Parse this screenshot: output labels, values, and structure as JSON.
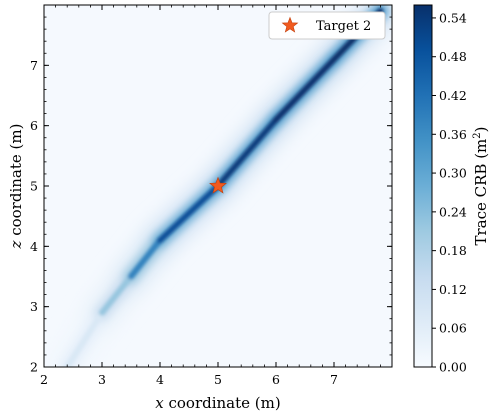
{
  "chart_data": {
    "type": "heatmap",
    "title": "",
    "xlabel": {
      "var": "x",
      "rest": " coordinate (m)"
    },
    "ylabel": {
      "var": "z",
      "rest": " coordinate (m)"
    },
    "xlim": [
      2,
      8
    ],
    "ylim": [
      2,
      8
    ],
    "xticks": [
      "2",
      "3",
      "4",
      "5",
      "6",
      "7"
    ],
    "yticks": [
      "2",
      "3",
      "4",
      "5",
      "6",
      "7"
    ],
    "grid": false,
    "colorbar": {
      "label": "Trace CRB (m",
      "label_sup": "2",
      "label_end": ")",
      "range": [
        0,
        0.56
      ],
      "ticks": [
        "0.00",
        "0.06",
        "0.12",
        "0.18",
        "0.24",
        "0.30",
        "0.36",
        "0.42",
        "0.48",
        "0.54"
      ],
      "colormap": "Blues"
    },
    "ridge": {
      "description_values": [
        {
          "x": 2.4,
          "z": 2.0,
          "crb": 0.03
        },
        {
          "x": 3.0,
          "z": 2.9,
          "crb": 0.14
        },
        {
          "x": 3.5,
          "z": 3.5,
          "crb": 0.3
        },
        {
          "x": 4.0,
          "z": 4.1,
          "crb": 0.47
        },
        {
          "x": 5.0,
          "z": 5.0,
          "crb": 0.52
        },
        {
          "x": 6.0,
          "z": 6.1,
          "crb": 0.55
        },
        {
          "x": 7.0,
          "z": 7.1,
          "crb": 0.56
        },
        {
          "x": 7.8,
          "z": 7.9,
          "crb": 0.56
        }
      ]
    },
    "marker": {
      "x": 5.0,
      "z": 5.0,
      "label": "Target 2",
      "color": "#f15a1f",
      "shape": "star"
    },
    "legend": {
      "position": "top-right",
      "entries": [
        "Target 2"
      ]
    }
  }
}
